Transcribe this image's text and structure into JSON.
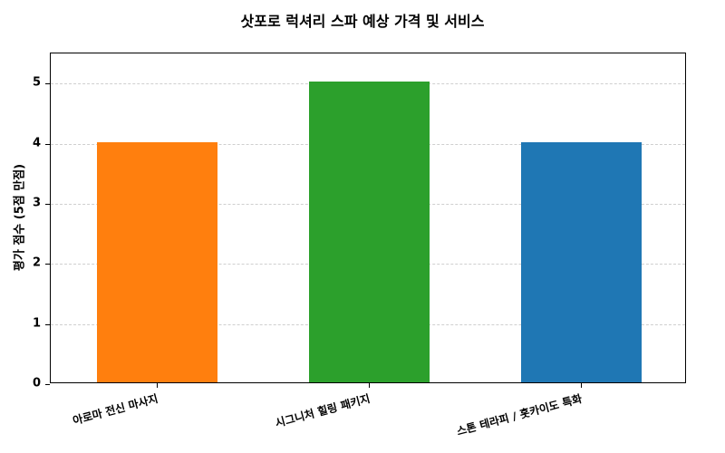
{
  "chart_data": {
    "type": "bar",
    "title": "삿포로 럭셔리 스파 예상 가격 및 서비스",
    "xlabel": "",
    "ylabel": "평가 점수 (5점 만점)",
    "categories": [
      "아로마 전신 마사지",
      "시그니처 힐링 패키지",
      "스톤 테라피 / 홋카이도 특화"
    ],
    "values": [
      4,
      5,
      4
    ],
    "colors": [
      "#ff7f0e",
      "#2ca02c",
      "#1f77b4"
    ],
    "ylim": [
      0,
      5.5
    ],
    "yticks": [
      0,
      1,
      2,
      3,
      4,
      5
    ],
    "grid": true,
    "legend": null
  }
}
